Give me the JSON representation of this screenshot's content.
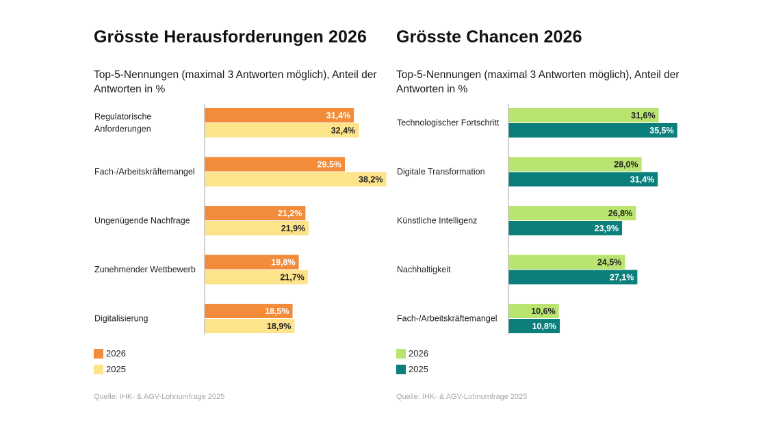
{
  "chart_data": [
    {
      "type": "bar",
      "orientation": "horizontal",
      "title": "Grösste Herausforderungen 2026",
      "subtitle": "Top-5-Nennungen (maximal 3 Antworten möglich), Anteil der Antworten in %",
      "categories": [
        "Regulatorische Anforderungen",
        "Fach-/Arbeitskräftemangel",
        "Ungenügende Nachfrage",
        "Zunehmender Wettbewerb",
        "Digitalisierung"
      ],
      "series": [
        {
          "name": "2026",
          "values": [
            31.4,
            29.5,
            21.2,
            19.8,
            18.5
          ],
          "labels": [
            "31,4%",
            "29,5%",
            "21,2%",
            "19,8%",
            "18,5%"
          ],
          "color": "#f28c3a",
          "label_color": "#ffffff"
        },
        {
          "name": "2025",
          "values": [
            32.4,
            38.2,
            21.9,
            21.7,
            18.9
          ],
          "labels": [
            "32,4%",
            "38,2%",
            "21,9%",
            "21,7%",
            "18,9%"
          ],
          "color": "#fde38a",
          "label_color": "#222222"
        }
      ],
      "legend_position": "bottom-left",
      "grid": false,
      "source": "Quelle: IHK- & AGV-Lohnumfrage 2025"
    },
    {
      "type": "bar",
      "orientation": "horizontal",
      "title": "Grösste Chancen 2026",
      "subtitle": "Top-5-Nennungen (maximal 3 Antworten möglich), Anteil der Antworten in %",
      "categories": [
        "Technologischer Fortschritt",
        "Digitale Transformation",
        "Künstliche Intelligenz",
        "Nachhaltigkeit",
        "Fach-/Arbeitskräftemangel"
      ],
      "series": [
        {
          "name": "2026",
          "values": [
            31.6,
            28.0,
            26.8,
            24.5,
            10.6
          ],
          "labels": [
            "31,6%",
            "28,0%",
            "26,8%",
            "24,5%",
            "10,6%"
          ],
          "color": "#b8e46f",
          "label_color": "#222222"
        },
        {
          "name": "2025",
          "values": [
            35.5,
            31.4,
            23.9,
            27.1,
            10.8
          ],
          "labels": [
            "35,5%",
            "31,4%",
            "23,9%",
            "27,1%",
            "10,8%"
          ],
          "color": "#0b7f7b",
          "label_color": "#ffffff"
        }
      ],
      "legend_position": "bottom-left",
      "grid": false,
      "source": "Quelle: IHK- & AGV-Lohnumfrage 2025"
    }
  ]
}
